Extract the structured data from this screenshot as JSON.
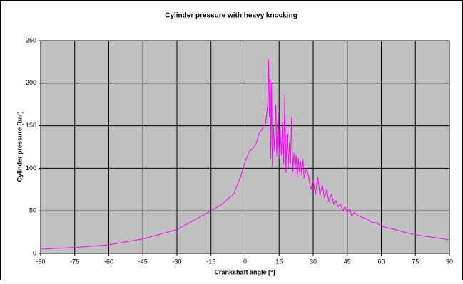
{
  "chart_data": {
    "type": "line",
    "title": "Cylinder pressure with heavy knocking",
    "x_label": "Crankshaft angle [°]",
    "y_label": "Cylinder pressure [bar]",
    "color": "#ff00ff",
    "x": [
      -90,
      -75,
      -60,
      -45,
      -30,
      -15,
      -10,
      -5,
      -2,
      0,
      2,
      4,
      5,
      6,
      8,
      9,
      10,
      10.3,
      10.7,
      11,
      11.3,
      11.7,
      12,
      12.5,
      13,
      13.5,
      14,
      14.5,
      15,
      15.5,
      16,
      16.5,
      17,
      17.5,
      18,
      18.5,
      19,
      19.5,
      20,
      20.5,
      21,
      21.5,
      22,
      22.5,
      23,
      23.5,
      24,
      24.5,
      25,
      25.5,
      26,
      27,
      28,
      29,
      30,
      31,
      32,
      33,
      34,
      35,
      36,
      37,
      38,
      39,
      40,
      41,
      42,
      43,
      44,
      45,
      46,
      47,
      48,
      50,
      52,
      54,
      56,
      58,
      60,
      63,
      66,
      70,
      75,
      80,
      85,
      90
    ],
    "values": [
      5,
      7,
      10,
      17,
      28,
      50,
      58,
      70,
      90,
      108,
      120,
      125,
      130,
      140,
      148,
      152,
      175,
      228,
      160,
      205,
      110,
      200,
      100,
      150,
      120,
      175,
      115,
      165,
      110,
      145,
      115,
      155,
      105,
      187,
      95,
      140,
      100,
      130,
      105,
      160,
      95,
      118,
      100,
      115,
      90,
      112,
      95,
      108,
      92,
      110,
      88,
      100,
      90,
      75,
      85,
      70,
      90,
      68,
      80,
      65,
      75,
      60,
      70,
      58,
      62,
      55,
      58,
      50,
      55,
      48,
      52,
      44,
      48,
      44,
      42,
      40,
      36,
      36,
      32,
      30,
      28,
      25,
      22,
      20,
      18,
      16
    ],
    "xlim": [
      -90,
      90
    ],
    "xticks": [
      -90,
      -75,
      -60,
      -45,
      -30,
      -15,
      0,
      15,
      30,
      45,
      60,
      75,
      90
    ],
    "ylim": [
      0,
      250
    ],
    "yticks": [
      0,
      50,
      100,
      150,
      200,
      250
    ],
    "grid": true
  }
}
